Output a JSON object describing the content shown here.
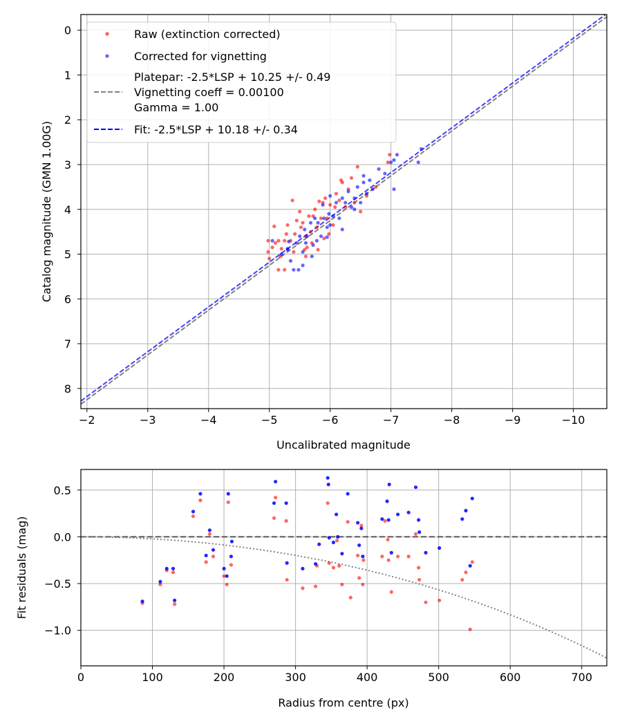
{
  "colors": {
    "raw": "#ff0000",
    "corrected": "#0000ff",
    "platepar_line": "#808080",
    "fit_line": "#0000ff",
    "vignetting_curve": "#808080",
    "zero_line": "#555555"
  },
  "chart_data": [
    {
      "type": "scatter",
      "title": "",
      "xlabel": "Uncalibrated magnitude",
      "ylabel": "Catalog magnitude (GMN 1.00G)",
      "xlim": [
        -1.9,
        -10.55
      ],
      "ylim": [
        8.45,
        -0.35
      ],
      "xticks": [
        -2,
        -3,
        -4,
        -5,
        -6,
        -7,
        -8,
        -9,
        -10
      ],
      "xtick_labels": [
        "−2",
        "−3",
        "−4",
        "−5",
        "−6",
        "−7",
        "−8",
        "−9",
        "−10"
      ],
      "yticks": [
        0,
        1,
        2,
        3,
        4,
        5,
        6,
        7,
        8
      ],
      "ytick_labels": [
        "0",
        "1",
        "2",
        "3",
        "4",
        "5",
        "6",
        "7",
        "8"
      ],
      "grid": true,
      "legend_position": "top-left",
      "legend": [
        {
          "label": "Raw (extinction corrected)",
          "kind": "marker",
          "color": "#ff0000"
        },
        {
          "label": "Corrected for vignetting",
          "kind": "marker",
          "color": "#0000ff"
        },
        {
          "lines": [
            "Platepar: -2.5*LSP + 10.25 +/- 0.49",
            "Vignetting coeff = 0.00100",
            "Gamma = 1.00"
          ],
          "kind": "dashed",
          "color": "#808080"
        },
        {
          "label": "Fit: -2.5*LSP + 10.18 +/- 0.34",
          "kind": "dashed",
          "color": "#0000ff"
        }
      ],
      "lines": [
        {
          "name": "Platepar",
          "slope": 1.0,
          "intercept": 10.25,
          "color": "#808080"
        },
        {
          "name": "Fit",
          "slope": 1.0,
          "intercept": 10.18,
          "color": "#0000ff"
        }
      ],
      "series": [
        {
          "name": "Raw (extinction corrected)",
          "color": "#ff0000",
          "points": [
            [
              -4.98,
              4.7
            ],
            [
              -4.98,
              4.95
            ],
            [
              -5.0,
              5.1
            ],
            [
              -5.05,
              4.85
            ],
            [
              -5.1,
              4.75
            ],
            [
              -5.08,
              4.38
            ],
            [
              -5.15,
              4.7
            ],
            [
              -5.15,
              5.35
            ],
            [
              -5.18,
              5.05
            ],
            [
              -5.2,
              4.88
            ],
            [
              -5.25,
              4.7
            ],
            [
              -5.28,
              4.55
            ],
            [
              -5.3,
              4.35
            ],
            [
              -5.35,
              4.7
            ],
            [
              -5.38,
              3.8
            ],
            [
              -5.4,
              4.95
            ],
            [
              -5.42,
              4.55
            ],
            [
              -5.45,
              4.25
            ],
            [
              -5.5,
              4.05
            ],
            [
              -5.52,
              4.4
            ],
            [
              -5.55,
              4.3
            ],
            [
              -5.58,
              4.9
            ],
            [
              -5.6,
              4.6
            ],
            [
              -5.62,
              4.85
            ],
            [
              -5.65,
              4.15
            ],
            [
              -5.68,
              4.5
            ],
            [
              -5.7,
              4.75
            ],
            [
              -5.72,
              4.15
            ],
            [
              -5.75,
              4.0
            ],
            [
              -5.78,
              4.4
            ],
            [
              -5.8,
              4.9
            ],
            [
              -5.82,
              3.82
            ],
            [
              -5.85,
              4.2
            ],
            [
              -5.88,
              3.85
            ],
            [
              -5.9,
              4.65
            ],
            [
              -5.92,
              3.75
            ],
            [
              -5.95,
              4.2
            ],
            [
              -5.98,
              4.55
            ],
            [
              -6.0,
              3.9
            ],
            [
              -6.05,
              4.35
            ],
            [
              -6.08,
              3.95
            ],
            [
              -6.1,
              3.65
            ],
            [
              -6.15,
              3.8
            ],
            [
              -6.18,
              3.35
            ],
            [
              -6.2,
              3.4
            ],
            [
              -6.25,
              3.95
            ],
            [
              -6.3,
              3.55
            ],
            [
              -6.35,
              3.3
            ],
            [
              -6.4,
              3.85
            ],
            [
              -6.45,
              3.05
            ],
            [
              -6.5,
              4.05
            ],
            [
              -6.6,
              3.7
            ],
            [
              -6.75,
              3.5
            ],
            [
              -6.95,
              2.95
            ],
            [
              -6.98,
              2.78
            ],
            [
              -5.25,
              5.35
            ],
            [
              -5.6,
              5.05
            ]
          ]
        },
        {
          "name": "Corrected for vignetting",
          "color": "#0000ff",
          "points": [
            [
              -5.05,
              4.7
            ],
            [
              -5.2,
              5.0
            ],
            [
              -5.3,
              4.9
            ],
            [
              -5.32,
              4.72
            ],
            [
              -5.35,
              5.15
            ],
            [
              -5.4,
              5.35
            ],
            [
              -5.45,
              4.75
            ],
            [
              -5.48,
              5.35
            ],
            [
              -5.5,
              4.6
            ],
            [
              -5.55,
              4.95
            ],
            [
              -5.58,
              4.45
            ],
            [
              -5.6,
              4.75
            ],
            [
              -5.62,
              4.6
            ],
            [
              -5.68,
              4.3
            ],
            [
              -5.7,
              5.05
            ],
            [
              -5.72,
              4.8
            ],
            [
              -5.75,
              4.2
            ],
            [
              -5.78,
              4.7
            ],
            [
              -5.8,
              4.3
            ],
            [
              -5.85,
              4.6
            ],
            [
              -5.88,
              3.9
            ],
            [
              -5.9,
              4.2
            ],
            [
              -5.95,
              4.4
            ],
            [
              -5.98,
              4.1
            ],
            [
              -6.0,
              3.7
            ],
            [
              -6.05,
              4.15
            ],
            [
              -6.1,
              3.85
            ],
            [
              -6.15,
              4.2
            ],
            [
              -6.2,
              3.75
            ],
            [
              -6.25,
              3.85
            ],
            [
              -6.3,
              3.6
            ],
            [
              -6.35,
              3.95
            ],
            [
              -6.4,
              3.75
            ],
            [
              -6.45,
              3.5
            ],
            [
              -6.5,
              3.85
            ],
            [
              -6.55,
              3.4
            ],
            [
              -6.6,
              3.65
            ],
            [
              -6.65,
              3.35
            ],
            [
              -6.7,
              3.55
            ],
            [
              -6.8,
              3.1
            ],
            [
              -6.9,
              3.2
            ],
            [
              -7.0,
              2.95
            ],
            [
              -7.05,
              2.9
            ],
            [
              -7.1,
              2.78
            ],
            [
              -7.05,
              3.55
            ],
            [
              -7.45,
              2.95
            ],
            [
              -7.5,
              2.65
            ],
            [
              -6.55,
              3.25
            ],
            [
              -6.4,
              4.0
            ],
            [
              -6.2,
              4.45
            ],
            [
              -5.95,
              4.62
            ],
            [
              -5.55,
              5.25
            ],
            [
              -5.3,
              4.88
            ],
            [
              -6.0,
              4.35
            ]
          ]
        }
      ]
    },
    {
      "type": "scatter",
      "title": "",
      "xlabel": "Radius from centre (px)",
      "ylabel": "Fit residuals (mag)",
      "xlim": [
        0,
        735
      ],
      "ylim": [
        -1.38,
        0.72
      ],
      "xticks": [
        0,
        100,
        200,
        300,
        400,
        500,
        600,
        700
      ],
      "xtick_labels": [
        "0",
        "100",
        "200",
        "300",
        "400",
        "500",
        "600",
        "700"
      ],
      "yticks": [
        0.5,
        0.0,
        -0.5,
        -1.0
      ],
      "ytick_labels": [
        "0.5",
        "0.0",
        "−0.5",
        "−1.0"
      ],
      "grid": true,
      "reference_lines": [
        {
          "name": "zero",
          "y": 0.0,
          "color": "#555555",
          "style": "dashed"
        },
        {
          "name": "vignetting",
          "coeff": 0.001,
          "color": "#808080",
          "style": "dotted"
        }
      ],
      "series": [
        {
          "name": "Raw (extinction corrected)",
          "color": "#ff0000",
          "points": [
            [
              86,
              -0.71
            ],
            [
              111,
              -0.51
            ],
            [
              120,
              -0.36
            ],
            [
              129,
              -0.38
            ],
            [
              131,
              -0.72
            ],
            [
              157,
              0.22
            ],
            [
              167,
              0.39
            ],
            [
              175,
              -0.27
            ],
            [
              180,
              0.03
            ],
            [
              185,
              -0.21
            ],
            [
              200,
              -0.42
            ],
            [
              204,
              -0.51
            ],
            [
              206,
              0.37
            ],
            [
              210,
              -0.3
            ],
            [
              270,
              0.2
            ],
            [
              272,
              0.42
            ],
            [
              287,
              0.17
            ],
            [
              288,
              -0.46
            ],
            [
              310,
              -0.55
            ],
            [
              328,
              -0.53
            ],
            [
              330,
              -0.31
            ],
            [
              345,
              0.36
            ],
            [
              347,
              -0.28
            ],
            [
              353,
              -0.33
            ],
            [
              358,
              -0.04
            ],
            [
              361,
              -0.31
            ],
            [
              365,
              -0.51
            ],
            [
              373,
              0.16
            ],
            [
              377,
              -0.65
            ],
            [
              387,
              -0.2
            ],
            [
              389,
              -0.44
            ],
            [
              392,
              0.12
            ],
            [
              395,
              -0.25
            ],
            [
              394,
              -0.51
            ],
            [
              421,
              -0.21
            ],
            [
              425,
              0.17
            ],
            [
              429,
              -0.03
            ],
            [
              430,
              -0.25
            ],
            [
              434,
              -0.59
            ],
            [
              443,
              -0.21
            ],
            [
              458,
              -0.21
            ],
            [
              468,
              0.03
            ],
            [
              472,
              -0.33
            ],
            [
              473,
              -0.46
            ],
            [
              482,
              -0.7
            ],
            [
              501,
              -0.68
            ],
            [
              533,
              -0.46
            ],
            [
              538,
              -0.38
            ],
            [
              544,
              -0.99
            ],
            [
              547,
              -0.27
            ]
          ]
        },
        {
          "name": "Corrected for vignetting",
          "color": "#0000ff",
          "points": [
            [
              86,
              -0.69
            ],
            [
              111,
              -0.48
            ],
            [
              120,
              -0.34
            ],
            [
              129,
              -0.34
            ],
            [
              131,
              -0.68
            ],
            [
              157,
              0.27
            ],
            [
              167,
              0.46
            ],
            [
              175,
              -0.2
            ],
            [
              180,
              0.07
            ],
            [
              185,
              -0.14
            ],
            [
              200,
              -0.34
            ],
            [
              204,
              -0.42
            ],
            [
              206,
              0.46
            ],
            [
              210,
              -0.21
            ],
            [
              211,
              -0.05
            ],
            [
              270,
              0.36
            ],
            [
              272,
              0.59
            ],
            [
              287,
              0.36
            ],
            [
              288,
              -0.28
            ],
            [
              310,
              -0.34
            ],
            [
              328,
              -0.29
            ],
            [
              333,
              -0.08
            ],
            [
              345,
              0.63
            ],
            [
              346,
              0.56
            ],
            [
              347,
              -0.01
            ],
            [
              353,
              -0.06
            ],
            [
              357,
              0.24
            ],
            [
              359,
              0.0
            ],
            [
              365,
              -0.18
            ],
            [
              373,
              0.46
            ],
            [
              387,
              0.15
            ],
            [
              389,
              -0.09
            ],
            [
              392,
              0.09
            ],
            [
              394,
              -0.21
            ],
            [
              421,
              0.19
            ],
            [
              428,
              0.38
            ],
            [
              430,
              0.18
            ],
            [
              431,
              0.56
            ],
            [
              434,
              -0.17
            ],
            [
              443,
              0.24
            ],
            [
              458,
              0.26
            ],
            [
              468,
              0.53
            ],
            [
              472,
              0.18
            ],
            [
              473,
              0.05
            ],
            [
              482,
              -0.17
            ],
            [
              501,
              -0.12
            ],
            [
              533,
              0.19
            ],
            [
              538,
              0.28
            ],
            [
              544,
              -0.31
            ],
            [
              547,
              0.41
            ]
          ]
        }
      ]
    }
  ]
}
